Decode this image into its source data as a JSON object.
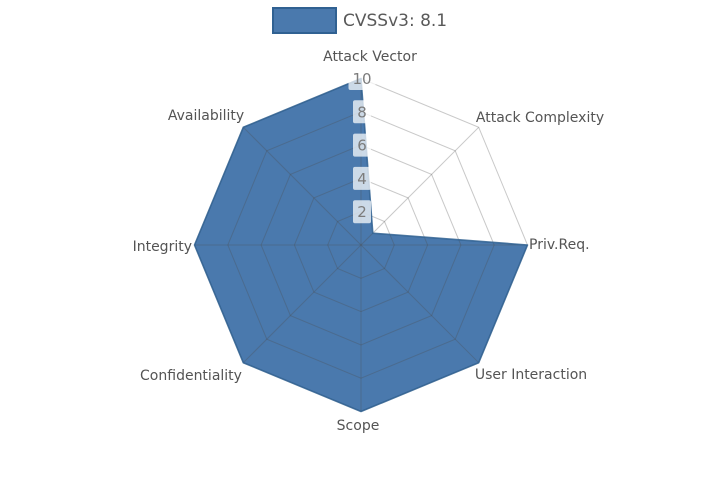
{
  "chart_data": {
    "type": "radar",
    "title": "",
    "legend_label": "CVSSv3: 8.1",
    "series_name": "CVSSv3",
    "score": "8.1",
    "axes": [
      "Attack Vector",
      "Attack Complexity",
      "Priv.Req.",
      "User Interaction",
      "Scope",
      "Confidentiality",
      "Integrity",
      "Availability"
    ],
    "values": [
      10,
      1,
      10,
      10,
      10,
      10,
      10,
      10
    ],
    "radial_ticks": [
      2,
      4,
      6,
      8,
      10
    ],
    "range": [
      0,
      10
    ],
    "grid": true,
    "legend_position": "top-center",
    "colors": {
      "fill": "#4a79ad",
      "outline": "#306192",
      "grid_line": "#4d4d4d",
      "axis_label": "#545454",
      "tick_label": "#7c7c7c",
      "tick_box": "#ffffff"
    }
  }
}
